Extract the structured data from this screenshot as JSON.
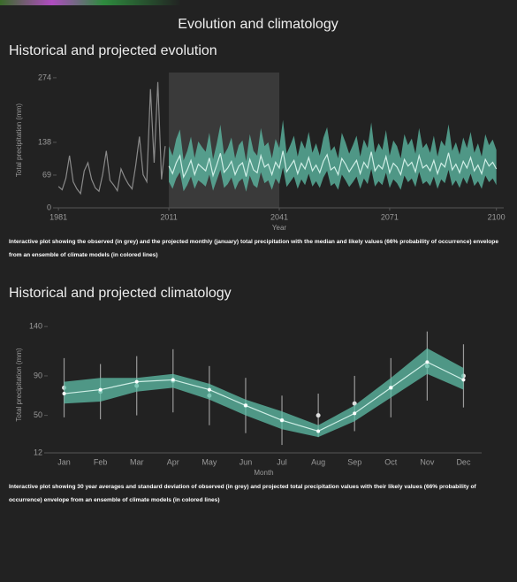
{
  "page": {
    "title": "Evolution and climatology"
  },
  "chart_data": [
    {
      "type": "line",
      "title": "Historical and projected evolution",
      "caption": "Interactive plot showing the observed (in grey) and the projected monthly (january) total precipitation with the median and likely values (66% probability of occurrence) envelope from an ensemble of climate models (in colored lines)",
      "x_label": "Year",
      "y_label": "Total precipitation (mm)",
      "xlim": [
        1980,
        2102
      ],
      "ylim": [
        0,
        285
      ],
      "xticks": [
        1981,
        2011,
        2041,
        2071,
        2100
      ],
      "yticks": [
        0,
        69,
        138,
        274
      ],
      "highlight": [
        2011,
        2041
      ],
      "grid": false,
      "series": [
        {
          "color": "#8a8a8a",
          "x": [
            1981,
            1982,
            1983,
            1984,
            1985,
            1986,
            1987,
            1988,
            1989,
            1990,
            1991,
            1992,
            1993,
            1994,
            1995,
            1996,
            1997,
            1998,
            1999,
            2000,
            2001,
            2002,
            2003,
            2004,
            2005,
            2006,
            2007,
            2008,
            2009,
            2010
          ],
          "values": [
            45,
            38,
            62,
            110,
            55,
            40,
            30,
            78,
            95,
            60,
            42,
            35,
            70,
            120,
            58,
            48,
            36,
            82,
            64,
            50,
            40,
            90,
            150,
            70,
            55,
            250,
            95,
            265,
            60,
            130
          ]
        },
        {
          "color": "#5fbfa8",
          "x": [
            2011,
            2012,
            2013,
            2014,
            2015,
            2016,
            2017,
            2018,
            2019,
            2020,
            2021,
            2022,
            2023,
            2024,
            2025,
            2026,
            2027,
            2028,
            2029,
            2030,
            2031,
            2032,
            2033,
            2034,
            2035,
            2036,
            2037,
            2038,
            2039,
            2040,
            2041,
            2042,
            2043,
            2044,
            2045,
            2046,
            2047,
            2048,
            2049,
            2050,
            2051,
            2052,
            2053,
            2054,
            2055,
            2056,
            2057,
            2058,
            2059,
            2060,
            2061,
            2062,
            2063,
            2064,
            2065,
            2066,
            2067,
            2068,
            2069,
            2070,
            2071,
            2072,
            2073,
            2074,
            2075,
            2076,
            2077,
            2078,
            2079,
            2080,
            2081,
            2082,
            2083,
            2084,
            2085,
            2086,
            2087,
            2088,
            2089,
            2090,
            2091,
            2092,
            2093,
            2094,
            2095,
            2096,
            2097,
            2098,
            2099,
            2100
          ],
          "values": [
            88,
            72,
            95,
            110,
            65,
            80,
            100,
            70,
            92,
            85,
            78,
            105,
            68,
            90,
            115,
            75,
            84,
            98,
            70,
            88,
            95,
            66,
            102,
            80,
            74,
            110,
            86,
            92,
            70,
            96,
            84,
            120,
            76,
            88,
            100,
            72,
            94,
            82,
            106,
            78,
            90,
            74,
            98,
            112,
            80,
            86,
            70,
            104,
            92,
            76,
            88,
            100,
            72,
            96,
            84,
            118,
            78,
            90,
            82,
            108,
            74,
            94,
            86,
            70,
            102,
            88,
            96,
            76,
            110,
            84,
            90,
            78,
            100,
            72,
            94,
            86,
            116,
            80,
            92,
            74,
            98,
            84,
            106,
            78,
            90,
            72,
            102,
            88,
            96,
            82
          ],
          "lower": [
            55,
            40,
            62,
            75,
            35,
            48,
            66,
            40,
            58,
            52,
            45,
            70,
            36,
            58,
            80,
            42,
            50,
            64,
            38,
            55,
            62,
            34,
            68,
            48,
            42,
            75,
            52,
            58,
            38,
            62,
            50,
            85,
            44,
            55,
            66,
            40,
            60,
            48,
            72,
            45,
            56,
            42,
            64,
            78,
            46,
            52,
            38,
            70,
            58,
            44,
            54,
            66,
            40,
            62,
            50,
            82,
            45,
            56,
            48,
            74,
            42,
            60,
            52,
            38,
            68,
            54,
            62,
            44,
            76,
            50,
            56,
            46,
            66,
            40,
            60,
            52,
            80,
            46,
            58,
            42,
            64,
            50,
            72,
            46,
            56,
            40,
            68,
            54,
            62,
            48
          ],
          "upper": [
            130,
            110,
            145,
            165,
            100,
            120,
            150,
            105,
            140,
            128,
            118,
            158,
            102,
            135,
            175,
            112,
            126,
            148,
            104,
            132,
            142,
            98,
            155,
            120,
            110,
            168,
            130,
            138,
            104,
            145,
            126,
            185,
            114,
            132,
            152,
            108,
            142,
            124,
            160,
            116,
            136,
            110,
            148,
            170,
            120,
            130,
            104,
            158,
            138,
            114,
            132,
            152,
            108,
            144,
            126,
            180,
            116,
            136,
            122,
            164,
            110,
            142,
            130,
            104,
            155,
            132,
            146,
            114,
            168,
            126,
            136,
            116,
            152,
            108,
            142,
            130,
            176,
            120,
            138,
            112,
            148,
            126,
            160,
            116,
            136,
            108,
            155,
            132,
            144,
            122
          ]
        }
      ]
    },
    {
      "type": "line",
      "title": "Historical and projected climatology",
      "caption": "Interactive plot showing 30 year averages and standard deviation of observed (in grey) and projected total precipitation values with their likely values (66% probability of occurrence) envelope from an ensemble of climate models (in colored lines)",
      "x_label": "Month",
      "y_label": "Total precipitation (mm)",
      "categories": [
        "Jan",
        "Feb",
        "Mar",
        "Apr",
        "May",
        "Jun",
        "Jul",
        "Aug",
        "Sep",
        "Oct",
        "Nov",
        "Dec"
      ],
      "ylim": [
        12,
        150
      ],
      "yticks": [
        12,
        50,
        90,
        140
      ],
      "grid": false,
      "series": [
        {
          "color": "#9a9a9a",
          "values": [
            78,
            74,
            80,
            85,
            70,
            60,
            45,
            50,
            62,
            78,
            100,
            90
          ],
          "errors": [
            30,
            28,
            30,
            32,
            30,
            28,
            25,
            22,
            28,
            30,
            35,
            32
          ]
        },
        {
          "color": "#5fbfa8",
          "values": [
            72,
            76,
            84,
            86,
            76,
            60,
            45,
            34,
            52,
            78,
            104,
            86
          ],
          "lower": [
            62,
            64,
            74,
            78,
            66,
            50,
            36,
            28,
            44,
            68,
            92,
            76
          ],
          "upper": [
            84,
            88,
            88,
            92,
            82,
            66,
            54,
            40,
            60,
            88,
            118,
            98
          ]
        }
      ]
    }
  ]
}
